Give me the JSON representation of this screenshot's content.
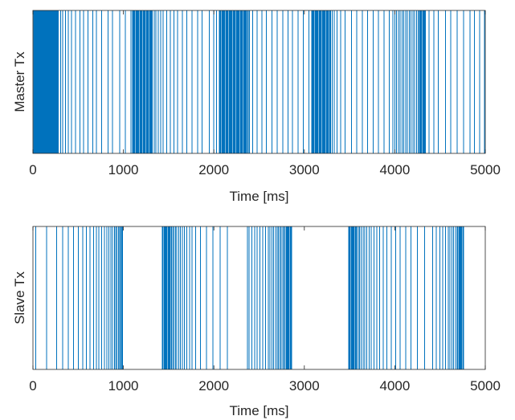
{
  "colors": {
    "line": "#0072BD",
    "axis": "#262626",
    "background": "#ffffff"
  },
  "chart_data": [
    {
      "type": "event-raster",
      "title": "",
      "xlabel": "Time [ms]",
      "ylabel": "Master Tx",
      "xlim": [
        0,
        5000
      ],
      "xticks": [
        0,
        1000,
        2000,
        3000,
        4000,
        5000
      ],
      "events_ms": [
        8,
        14,
        20,
        27,
        33,
        40,
        46,
        53,
        59,
        66,
        72,
        79,
        85,
        92,
        98,
        105,
        111,
        118,
        124,
        131,
        137,
        144,
        150,
        157,
        163,
        170,
        176,
        183,
        189,
        196,
        202,
        209,
        215,
        222,
        228,
        235,
        241,
        248,
        254,
        261,
        267,
        274,
        280,
        305,
        330,
        360,
        390,
        425,
        470,
        520,
        560,
        610,
        660,
        700,
        760,
        830,
        880,
        960,
        1020,
        1085,
        1100,
        1110,
        1120,
        1130,
        1140,
        1150,
        1160,
        1170,
        1180,
        1190,
        1200,
        1210,
        1220,
        1230,
        1240,
        1250,
        1260,
        1270,
        1280,
        1290,
        1300,
        1310,
        1320,
        1340,
        1360,
        1385,
        1410,
        1440,
        1480,
        1520,
        1560,
        1600,
        1650,
        1700,
        1760,
        1820,
        1870,
        1950,
        2000,
        2030,
        2060,
        2070,
        2080,
        2090,
        2100,
        2110,
        2120,
        2130,
        2140,
        2150,
        2160,
        2170,
        2180,
        2190,
        2200,
        2210,
        2220,
        2230,
        2240,
        2250,
        2260,
        2270,
        2280,
        2290,
        2300,
        2310,
        2320,
        2330,
        2340,
        2350,
        2360,
        2370,
        2380,
        2395,
        2430,
        2480,
        2530,
        2580,
        2640,
        2700,
        2760,
        2820,
        2870,
        2930,
        2990,
        3050,
        3080,
        3090,
        3100,
        3110,
        3120,
        3130,
        3140,
        3150,
        3160,
        3170,
        3180,
        3190,
        3200,
        3210,
        3220,
        3230,
        3240,
        3250,
        3260,
        3270,
        3280,
        3290,
        3310,
        3330,
        3360,
        3400,
        3450,
        3520,
        3580,
        3640,
        3700,
        3760,
        3820,
        3880,
        3940,
        3980,
        4000,
        4020,
        4040,
        4060,
        4080,
        4100,
        4120,
        4140,
        4160,
        4180,
        4200,
        4220,
        4240,
        4260,
        4270,
        4280,
        4290,
        4300,
        4310,
        4320,
        4330,
        4340,
        4380,
        4430,
        4480,
        4560,
        4620,
        4690,
        4760,
        4830,
        4880,
        4940,
        4990
      ]
    },
    {
      "type": "event-raster",
      "title": "",
      "xlabel": "Time [ms]",
      "ylabel": "Slave Tx",
      "xlim": [
        0,
        5000
      ],
      "xticks": [
        0,
        1000,
        2000,
        3000,
        4000,
        5000
      ],
      "events_ms": [
        30,
        150,
        260,
        330,
        390,
        450,
        500,
        550,
        590,
        630,
        670,
        700,
        730,
        760,
        790,
        815,
        840,
        860,
        880,
        900,
        915,
        930,
        945,
        960,
        970,
        980,
        990,
        1430,
        1440,
        1450,
        1460,
        1470,
        1480,
        1490,
        1500,
        1510,
        1520,
        1530,
        1545,
        1560,
        1575,
        1590,
        1610,
        1630,
        1650,
        1675,
        1700,
        1730,
        1760,
        1800,
        1850,
        1920,
        1990,
        2070,
        2150,
        2370,
        2390,
        2420,
        2450,
        2480,
        2510,
        2540,
        2570,
        2600,
        2620,
        2640,
        2660,
        2680,
        2700,
        2715,
        2730,
        2745,
        2760,
        2775,
        2790,
        2800,
        2810,
        2820,
        2830,
        2840,
        2850,
        2860,
        3490,
        3500,
        3510,
        3520,
        3530,
        3540,
        3550,
        3560,
        3570,
        3580,
        3595,
        3610,
        3630,
        3650,
        3670,
        3690,
        3715,
        3740,
        3770,
        3800,
        3830,
        3870,
        3910,
        3960,
        4010,
        4060,
        4120,
        4180,
        4250,
        4330,
        4420,
        4460,
        4500,
        4530,
        4560,
        4590,
        4610,
        4630,
        4650,
        4670,
        4690,
        4700,
        4710,
        4720,
        4730,
        4740,
        4750,
        4760
      ]
    }
  ]
}
